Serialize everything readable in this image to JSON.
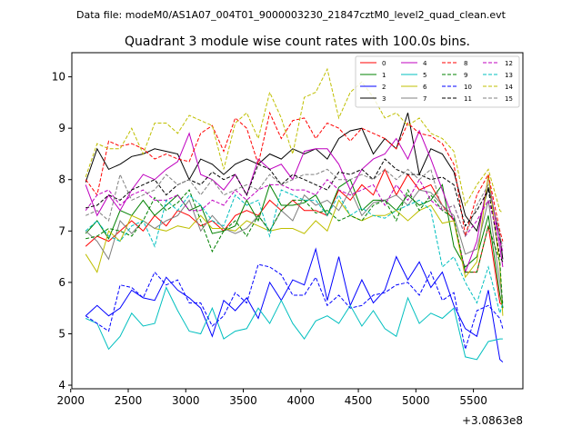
{
  "figure": {
    "suptitle": "Data file: modeM0/AS1A07_004T01_9000003230_21847cztM0_level2_quad_clean.evt",
    "title": "Quadrant 3 module wise count rates with 100.0s bins.",
    "x_offset_label": "+3.0863e8"
  },
  "chart_data": {
    "type": "line",
    "title": "Quadrant 3 module wise count rates with 100.0s bins.",
    "xlabel": "",
    "ylabel": "",
    "x_offset": 308630000,
    "xlim": [
      2010,
      5930
    ],
    "ylim": [
      3.93,
      10.47
    ],
    "xticks": [
      2000,
      2500,
      3000,
      3500,
      4000,
      4500,
      5000,
      5500
    ],
    "yticks": [
      4,
      5,
      6,
      7,
      8,
      9,
      10
    ],
    "grid": false,
    "legend": {
      "location": "upper right",
      "columns": 4
    },
    "x": [
      2130,
      2230,
      2330,
      2430,
      2530,
      2630,
      2730,
      2830,
      2930,
      3030,
      3130,
      3230,
      3330,
      3430,
      3530,
      3630,
      3730,
      3830,
      3930,
      4030,
      4130,
      4230,
      4330,
      4430,
      4530,
      4630,
      4730,
      4830,
      4930,
      5030,
      5130,
      5230,
      5330,
      5430,
      5530,
      5630,
      5730,
      5755
    ],
    "series": [
      {
        "name": "0",
        "color": "#ff0000",
        "style": "solid",
        "values": [
          6.7,
          6.9,
          6.8,
          7.0,
          7.2,
          7.0,
          7.3,
          7.1,
          7.4,
          7.3,
          7.1,
          7.2,
          7.0,
          7.3,
          7.4,
          7.3,
          7.6,
          7.4,
          7.6,
          7.4,
          7.4,
          7.3,
          7.8,
          7.6,
          7.9,
          7.7,
          8.2,
          7.7,
          8.1,
          7.8,
          7.9,
          7.5,
          7.2,
          6.2,
          6.2,
          7.1,
          5.6,
          5.55
        ]
      },
      {
        "name": "1",
        "color": "#008000",
        "style": "solid",
        "values": [
          6.95,
          7.2,
          6.85,
          7.4,
          7.3,
          7.6,
          7.3,
          7.5,
          7.7,
          7.4,
          7.5,
          6.95,
          7.0,
          7.1,
          7.6,
          7.2,
          7.9,
          7.5,
          7.5,
          7.55,
          7.7,
          7.3,
          7.85,
          8.0,
          7.4,
          7.6,
          7.6,
          7.4,
          7.7,
          7.5,
          7.6,
          7.9,
          6.7,
          6.3,
          6.5,
          7.3,
          5.75,
          5.5
        ]
      },
      {
        "name": "2",
        "color": "#0000ff",
        "style": "solid",
        "values": [
          5.35,
          5.55,
          5.35,
          5.5,
          5.85,
          5.7,
          5.65,
          6.1,
          5.85,
          5.7,
          5.5,
          4.95,
          5.65,
          5.45,
          5.7,
          5.3,
          6.0,
          5.65,
          6.05,
          5.95,
          6.65,
          5.65,
          6.5,
          5.55,
          6.05,
          5.6,
          5.85,
          6.5,
          6.05,
          6.4,
          5.9,
          6.2,
          5.55,
          5.1,
          4.95,
          5.85,
          4.5,
          4.45
        ]
      },
      {
        "name": "3",
        "color": "#000000",
        "style": "solid",
        "values": [
          7.95,
          8.6,
          8.2,
          8.3,
          8.45,
          8.5,
          8.6,
          8.55,
          8.5,
          8.0,
          8.4,
          8.3,
          8.1,
          8.3,
          8.4,
          8.3,
          8.5,
          8.4,
          8.6,
          8.5,
          8.6,
          8.4,
          8.8,
          8.95,
          9.0,
          8.5,
          8.8,
          8.6,
          9.3,
          8.1,
          8.6,
          8.5,
          8.15,
          7.3,
          7.0,
          7.85,
          6.9,
          6.45
        ]
      },
      {
        "name": "4",
        "color": "#bf00bf",
        "style": "solid",
        "values": [
          7.9,
          7.3,
          7.7,
          7.4,
          7.8,
          8.1,
          8.0,
          8.2,
          8.35,
          8.9,
          8.1,
          8.0,
          7.8,
          8.1,
          7.7,
          8.4,
          8.2,
          8.3,
          8.0,
          8.55,
          8.6,
          8.6,
          8.3,
          7.8,
          8.2,
          8.4,
          8.5,
          8.8,
          8.4,
          8.95,
          8.4,
          7.8,
          7.2,
          6.2,
          6.8,
          8.05,
          6.7,
          6.3
        ]
      },
      {
        "name": "5",
        "color": "#00bfbf",
        "style": "solid",
        "values": [
          5.3,
          5.2,
          4.7,
          4.95,
          5.4,
          5.15,
          5.2,
          5.9,
          5.45,
          5.05,
          5.0,
          5.5,
          4.9,
          5.05,
          5.1,
          5.5,
          5.2,
          5.65,
          5.2,
          4.9,
          5.25,
          5.35,
          5.2,
          5.55,
          5.15,
          5.45,
          5.1,
          4.95,
          5.7,
          5.2,
          5.4,
          5.3,
          5.5,
          4.55,
          4.5,
          4.85,
          4.9,
          4.9
        ]
      },
      {
        "name": "6",
        "color": "#bfbf00",
        "style": "solid",
        "values": [
          6.55,
          6.2,
          7.0,
          6.8,
          7.3,
          7.2,
          7.05,
          7.0,
          7.1,
          7.05,
          7.3,
          7.05,
          7.05,
          7.0,
          7.2,
          7.1,
          7.0,
          7.05,
          7.05,
          6.95,
          7.2,
          7.0,
          7.6,
          7.3,
          7.2,
          7.3,
          7.3,
          7.4,
          7.2,
          7.4,
          7.5,
          7.15,
          7.2,
          6.1,
          6.4,
          8.1,
          6.3,
          5.35
        ]
      },
      {
        "name": "7",
        "color": "#808080",
        "style": "solid",
        "values": [
          7.0,
          6.8,
          6.45,
          7.2,
          6.95,
          7.2,
          7.05,
          7.2,
          7.3,
          7.6,
          7.0,
          7.3,
          7.05,
          6.95,
          7.05,
          7.3,
          7.0,
          7.4,
          7.2,
          7.7,
          7.5,
          7.6,
          7.4,
          7.8,
          7.3,
          7.55,
          7.6,
          7.7,
          7.5,
          7.8,
          7.75,
          7.5,
          7.3,
          6.55,
          6.65,
          7.6,
          6.0,
          5.6
        ]
      },
      {
        "name": "8",
        "color": "#ff0000",
        "style": "dashed",
        "values": [
          8.0,
          7.7,
          8.75,
          8.65,
          8.7,
          8.6,
          8.4,
          8.5,
          8.4,
          8.35,
          8.9,
          9.05,
          8.55,
          9.2,
          9.0,
          8.3,
          9.3,
          8.8,
          9.15,
          9.2,
          8.8,
          9.1,
          9.0,
          8.75,
          9.0,
          8.9,
          8.8,
          8.6,
          9.1,
          8.9,
          8.85,
          8.7,
          8.3,
          6.9,
          7.7,
          8.1,
          7.0,
          6.8
        ]
      },
      {
        "name": "9",
        "color": "#008000",
        "style": "dashed",
        "values": [
          6.85,
          6.9,
          7.05,
          7.0,
          6.9,
          7.2,
          7.65,
          7.4,
          7.55,
          7.8,
          7.2,
          6.6,
          7.0,
          7.2,
          6.9,
          7.3,
          7.0,
          7.4,
          7.6,
          7.6,
          7.35,
          7.4,
          7.2,
          7.3,
          7.2,
          7.5,
          7.6,
          7.2,
          7.8,
          7.4,
          7.7,
          7.4,
          7.25,
          6.2,
          6.2,
          7.1,
          6.4,
          5.5
        ]
      },
      {
        "name": "10",
        "color": "#0000ff",
        "style": "dashed",
        "values": [
          5.35,
          5.2,
          5.05,
          5.95,
          5.9,
          5.7,
          6.2,
          5.95,
          6.05,
          5.6,
          5.6,
          5.15,
          5.35,
          5.8,
          5.6,
          6.35,
          6.3,
          6.15,
          5.75,
          5.75,
          6.1,
          5.55,
          5.75,
          5.5,
          5.55,
          5.75,
          5.8,
          5.95,
          6.0,
          5.75,
          6.2,
          5.65,
          5.8,
          4.7,
          5.45,
          5.55,
          5.3,
          5.1
        ]
      },
      {
        "name": "11",
        "color": "#000000",
        "style": "dashed",
        "values": [
          7.45,
          7.5,
          7.7,
          7.6,
          7.8,
          7.9,
          8.0,
          7.7,
          7.9,
          8.0,
          7.9,
          8.15,
          8.0,
          8.1,
          7.7,
          8.3,
          8.2,
          7.9,
          8.1,
          8.0,
          7.9,
          7.8,
          8.15,
          8.1,
          8.2,
          8.0,
          8.4,
          8.2,
          8.1,
          8.1,
          8.0,
          8.05,
          7.9,
          7.1,
          7.4,
          7.8,
          6.5,
          6.4
        ]
      },
      {
        "name": "12",
        "color": "#bf00bf",
        "style": "dashed",
        "values": [
          7.4,
          7.7,
          7.8,
          7.5,
          7.7,
          7.8,
          7.6,
          7.6,
          7.7,
          7.4,
          7.4,
          7.6,
          7.5,
          7.8,
          7.6,
          7.8,
          7.9,
          7.9,
          7.8,
          7.8,
          7.7,
          8.0,
          7.8,
          7.7,
          7.8,
          7.9,
          7.5,
          7.9,
          7.6,
          8.0,
          7.6,
          7.4,
          7.5,
          6.9,
          7.2,
          7.6,
          6.8,
          6.6
        ]
      },
      {
        "name": "13",
        "color": "#00bfbf",
        "style": "dashed",
        "values": [
          7.0,
          7.2,
          6.9,
          6.8,
          7.1,
          7.2,
          6.7,
          7.6,
          7.4,
          7.7,
          7.5,
          7.2,
          7.1,
          7.7,
          7.5,
          7.6,
          6.9,
          7.8,
          7.7,
          7.6,
          7.6,
          7.3,
          7.7,
          7.3,
          7.45,
          7.3,
          7.25,
          7.4,
          7.5,
          7.6,
          7.4,
          6.3,
          6.5,
          6.0,
          5.6,
          6.3,
          5.4,
          5.6
        ]
      },
      {
        "name": "14",
        "color": "#bfbf00",
        "style": "dashed",
        "values": [
          8.05,
          8.7,
          8.6,
          8.6,
          9.0,
          8.5,
          9.1,
          9.1,
          8.9,
          9.25,
          9.15,
          9.05,
          8.2,
          9.1,
          9.3,
          8.8,
          9.7,
          9.2,
          8.5,
          9.6,
          9.7,
          10.15,
          9.2,
          9.7,
          9.9,
          9.6,
          9.2,
          9.3,
          9.05,
          9.2,
          8.9,
          8.8,
          8.55,
          7.5,
          7.9,
          8.2,
          7.4,
          7.35
        ]
      },
      {
        "name": "15",
        "color": "#808080",
        "style": "dashed",
        "values": [
          7.3,
          7.4,
          7.2,
          8.1,
          7.6,
          7.7,
          7.8,
          8.1,
          7.9,
          8.0,
          7.7,
          8.0,
          7.7,
          7.8,
          7.9,
          7.8,
          8.1,
          7.9,
          8.0,
          8.1,
          8.1,
          8.2,
          8.0,
          8.0,
          8.1,
          8.0,
          8.2,
          8.0,
          8.2,
          8.0,
          8.2,
          7.4,
          7.5,
          6.9,
          7.5,
          7.9,
          6.9,
          6.7
        ]
      }
    ]
  }
}
